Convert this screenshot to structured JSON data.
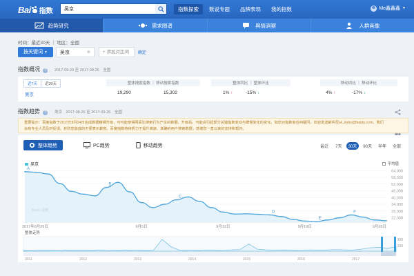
{
  "header": {
    "logo_text": "Bai",
    "logo_sub": "指数",
    "search_value": "吴京",
    "nav": [
      "指数探索",
      "数说专题",
      "品牌表现",
      "我的指数"
    ],
    "active_nav": 0,
    "user": "Me鑫鑫鑫"
  },
  "tabs": [
    {
      "label": "趋势研究",
      "icon": "trend-chart-icon",
      "active": true
    },
    {
      "label": "需求图谱",
      "icon": "demand-graph-icon",
      "active": false
    },
    {
      "label": "舆情洞察",
      "icon": "sentiment-icon",
      "active": false
    },
    {
      "label": "人群画像",
      "icon": "persona-icon",
      "active": false
    }
  ],
  "breadcrumb": "时间：最近30天 ｜ 地区：全国",
  "controls": {
    "keyword_button": "按关键词",
    "keyword_tag": "吴京",
    "add_compare": "+ 添加对比词",
    "confirm": "确定"
  },
  "overview": {
    "title": "指数概况",
    "meta": "2017-09-20 至 2017-09-26　全国",
    "period_tabs": [
      "近7天",
      "近30天"
    ],
    "head_group1": "整体搜索指数 ｜ 移动搜索指数",
    "head_group2": "整体同比 ｜ 整体环比",
    "head_group3": "移动同比 ｜ 移动环比",
    "keyword": "吴京",
    "overall_index": "19,290",
    "mobile_index": "15,302",
    "overall_yoy": "1%",
    "overall_mom": "-15%",
    "mobile_yoy": "4%",
    "mobile_mom": "-17%"
  },
  "trend": {
    "title": "指数趋势",
    "meta": "吴京　2017-08-26 至 2017-09-26　全国",
    "notice_line1": "重要提示：百度指数于2017年8月24日完成数据精细升级，可可能使得网民生搜索行为产生的数据，升级后，可能会引起部分关键指数变动与缓慢变化的变化。如您对指数有任何疑问，欢迎发送邮件至wl_index@baidu.com，我们",
    "notice_line2": "会有专业人员及时反馈。并防您造成的不便表示歉意。百度指数持续努力于提升高速、准确的用户搜索数据，感谢您一直以来的支持和帮并。",
    "modes": [
      {
        "label": "整体趋势",
        "icon": "overall-icon",
        "active": true
      },
      {
        "label": "PC趋势",
        "icon": "pc-icon",
        "active": false
      },
      {
        "label": "移动趋势",
        "icon": "mobile-icon",
        "active": false
      }
    ],
    "range_label": "最近",
    "ranges": [
      "7天",
      "30天",
      "90天",
      "半年",
      "全部"
    ],
    "active_range": 1,
    "legend": "吴京",
    "avg_label": "平均值",
    "nav_title": "整体走势",
    "watermark": "Baidu 指数"
  },
  "chart_data": {
    "type": "line",
    "series": [
      {
        "name": "吴京",
        "x": [
          "2017年8月26日",
          "8月27日",
          "8月28日",
          "8月29日",
          "8月30日",
          "8月31日",
          "9月1日",
          "9月2日",
          "9月3日",
          "9月4日",
          "9月5日",
          "9月6日",
          "9月7日",
          "9月8日",
          "9月9日",
          "9月10日",
          "9月11日",
          "9月12日",
          "9月13日",
          "9月14日",
          "9月15日",
          "9月16日",
          "9月17日",
          "9月18日",
          "9月19日",
          "9月20日",
          "9月21日",
          "9月22日",
          "9月23日",
          "9月24日",
          "9月25日",
          "9月26日"
        ],
        "values": [
          63000,
          62500,
          61000,
          52500,
          45500,
          43000,
          41500,
          49000,
          53500,
          45000,
          35500,
          31000,
          34000,
          38000,
          40500,
          36500,
          31000,
          27000,
          25200,
          25500,
          25000,
          24500,
          23000,
          20500,
          19000,
          18500,
          20000,
          22000,
          24500,
          22500,
          20000,
          19290
        ]
      }
    ],
    "annotations": [
      "A",
      "B",
      "C",
      "D",
      "E",
      "F"
    ],
    "x_tick_labels": [
      "2017年8月26日",
      "9月5日",
      "9月12日",
      "9月19日",
      "9月26日"
    ],
    "y_tick_labels": [
      "64,000",
      "58,000",
      "52,000",
      "46,000",
      "40,000",
      "34,000",
      "28,000",
      "22,000"
    ],
    "ylim": [
      18000,
      66000
    ],
    "nav_y_tick_labels": [
      "300",
      "150"
    ],
    "nav_x_tick_labels": [
      "2011",
      "2012",
      "2013",
      "2014",
      "2015",
      "2016",
      "2017"
    ],
    "colors": {
      "line": "#56a9dc",
      "fill": "#e4f3fa"
    }
  }
}
